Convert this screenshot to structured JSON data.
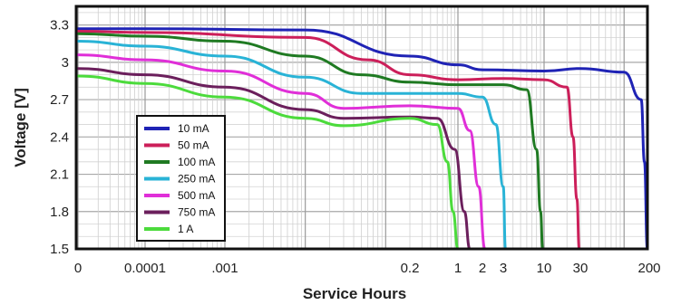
{
  "chart_data": {
    "type": "line",
    "title": "",
    "xlabel": "Service Hours",
    "ylabel": "Voltage [V]",
    "ylim": [
      1.5,
      3.45
    ],
    "y_ticks": [
      "3.3",
      "3",
      "2.7",
      "2.4",
      "2.1",
      "1.8",
      "1.5"
    ],
    "x_scale": "log",
    "x_ticks": [
      "0",
      "0.0001",
      ".001",
      "0.2",
      "1",
      "2",
      "3",
      "10",
      "30",
      "200"
    ],
    "grid": true,
    "legend_position": "left-bottom",
    "series": [
      {
        "name": "10 mA",
        "color": "#1f23b5",
        "points": [
          [
            0,
            3.27
          ],
          [
            0.0001,
            3.27
          ],
          [
            0.01,
            3.26
          ],
          [
            0.2,
            3.05
          ],
          [
            1,
            2.98
          ],
          [
            2,
            2.94
          ],
          [
            10,
            2.93
          ],
          [
            30,
            2.95
          ],
          [
            100,
            2.92
          ],
          [
            160,
            2.7
          ],
          [
            175,
            2.2
          ],
          [
            190,
            1.5
          ]
        ]
      },
      {
        "name": "50 mA",
        "color": "#cc1f5a",
        "points": [
          [
            0,
            3.25
          ],
          [
            0.0001,
            3.24
          ],
          [
            0.01,
            3.2
          ],
          [
            0.06,
            3.02
          ],
          [
            0.2,
            2.9
          ],
          [
            1,
            2.86
          ],
          [
            3,
            2.87
          ],
          [
            10,
            2.86
          ],
          [
            20,
            2.8
          ],
          [
            24,
            2.4
          ],
          [
            27,
            1.9
          ],
          [
            29,
            1.5
          ]
        ]
      },
      {
        "name": "100 mA",
        "color": "#1f7a22",
        "points": [
          [
            0,
            3.23
          ],
          [
            0.0001,
            3.21
          ],
          [
            0.001,
            3.17
          ],
          [
            0.01,
            3.05
          ],
          [
            0.05,
            2.9
          ],
          [
            0.2,
            2.84
          ],
          [
            1,
            2.82
          ],
          [
            3,
            2.82
          ],
          [
            6,
            2.78
          ],
          [
            8,
            2.3
          ],
          [
            9,
            1.8
          ],
          [
            9.6,
            1.5
          ]
        ]
      },
      {
        "name": "250 mA",
        "color": "#29b3d6",
        "points": [
          [
            0,
            3.17
          ],
          [
            0.0001,
            3.13
          ],
          [
            0.001,
            3.05
          ],
          [
            0.01,
            2.88
          ],
          [
            0.05,
            2.75
          ],
          [
            0.2,
            2.75
          ],
          [
            1,
            2.75
          ],
          [
            2,
            2.72
          ],
          [
            2.6,
            2.5
          ],
          [
            3,
            2.0
          ],
          [
            3.2,
            1.5
          ]
        ]
      },
      {
        "name": "500 mA",
        "color": "#e02fd8",
        "points": [
          [
            0,
            3.06
          ],
          [
            0.0001,
            3.02
          ],
          [
            0.001,
            2.93
          ],
          [
            0.01,
            2.75
          ],
          [
            0.03,
            2.63
          ],
          [
            0.2,
            2.65
          ],
          [
            1,
            2.63
          ],
          [
            1.4,
            2.45
          ],
          [
            1.8,
            2.0
          ],
          [
            2.1,
            1.5
          ]
        ]
      },
      {
        "name": "750 mA",
        "color": "#6b1f5c",
        "points": [
          [
            0,
            2.95
          ],
          [
            0.0001,
            2.9
          ],
          [
            0.001,
            2.8
          ],
          [
            0.01,
            2.62
          ],
          [
            0.03,
            2.55
          ],
          [
            0.2,
            2.56
          ],
          [
            0.5,
            2.55
          ],
          [
            0.9,
            2.3
          ],
          [
            1.2,
            1.8
          ],
          [
            1.4,
            1.5
          ]
        ]
      },
      {
        "name": "1 A",
        "color": "#4cdb3c",
        "points": [
          [
            0,
            2.89
          ],
          [
            0.0001,
            2.83
          ],
          [
            0.001,
            2.72
          ],
          [
            0.01,
            2.55
          ],
          [
            0.03,
            2.49
          ],
          [
            0.2,
            2.55
          ],
          [
            0.5,
            2.5
          ],
          [
            0.7,
            2.2
          ],
          [
            0.85,
            1.8
          ],
          [
            1.0,
            1.5
          ]
        ]
      }
    ]
  }
}
